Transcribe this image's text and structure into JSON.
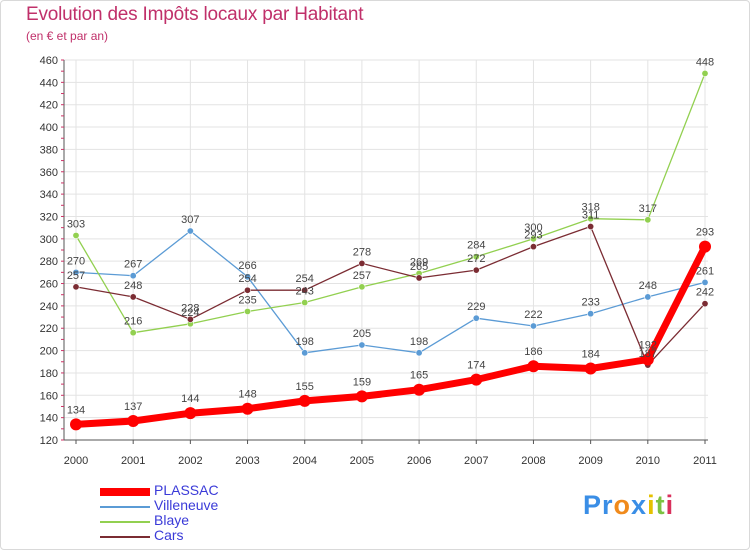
{
  "title": "Evolution des Impôts locaux par Habitant",
  "subtitle": "(en € et par an)",
  "logo": {
    "text": "Proxiti",
    "letters": [
      {
        "ch": "P",
        "color": "#3a8ee6"
      },
      {
        "ch": "r",
        "color": "#3a8ee6"
      },
      {
        "ch": "o",
        "color": "#f08a1c"
      },
      {
        "ch": "x",
        "color": "#3a8ee6"
      },
      {
        "ch": "i",
        "color": "#e5c100"
      },
      {
        "ch": "t",
        "color": "#7cc242"
      },
      {
        "ch": "i",
        "color": "#d9305c"
      }
    ]
  },
  "chart_data": {
    "type": "line",
    "title": "Evolution des Impôts locaux par Habitant",
    "subtitle": "(en € et par an)",
    "xlabel": "",
    "ylabel": "",
    "x": [
      "2000",
      "2001",
      "2002",
      "2003",
      "2004",
      "2005",
      "2006",
      "2007",
      "2008",
      "2009",
      "2010",
      "2011"
    ],
    "ylim": [
      120,
      460
    ],
    "yticks": [
      120,
      140,
      160,
      180,
      200,
      220,
      240,
      260,
      280,
      300,
      320,
      340,
      360,
      380,
      400,
      420,
      440,
      460
    ],
    "grid": true,
    "legend_position": "bottom-left",
    "series": [
      {
        "name": "Villeneuve",
        "color": "#5b9bd5",
        "values": [
          270,
          267,
          307,
          266,
          198,
          205,
          198,
          229,
          222,
          233,
          248,
          261
        ]
      },
      {
        "name": "Blaye",
        "color": "#92d050",
        "values": [
          303,
          216,
          224,
          235,
          243,
          257,
          269,
          284,
          300,
          318,
          317,
          448
        ]
      },
      {
        "name": "Cars",
        "color": "#7b2c33",
        "values": [
          257,
          248,
          228,
          254,
          254,
          278,
          265,
          272,
          293,
          311,
          187,
          242
        ]
      },
      {
        "name": "PLASSAC",
        "color": "#ff0000",
        "values": [
          134,
          137,
          144,
          148,
          155,
          159,
          165,
          174,
          186,
          184,
          192,
          293
        ]
      }
    ],
    "labels": {
      "PLASSAC": [
        "134",
        "137",
        "144",
        "148",
        "155",
        "159",
        "165",
        "174",
        "186",
        "184",
        "192",
        "293"
      ],
      "Villeneuve": [
        "270",
        "267",
        "307",
        "266",
        "198",
        "205",
        "198",
        "229",
        "222",
        "233",
        "248",
        "261"
      ],
      "Blaye": [
        "303",
        "216",
        "224",
        "235",
        "243",
        "257",
        "269",
        "284",
        "300",
        "318",
        "317",
        "448"
      ],
      "Cars": [
        "257",
        "248",
        "228",
        "254",
        "254",
        "278",
        "265",
        "272",
        "293",
        "311",
        "187",
        "242"
      ]
    }
  }
}
